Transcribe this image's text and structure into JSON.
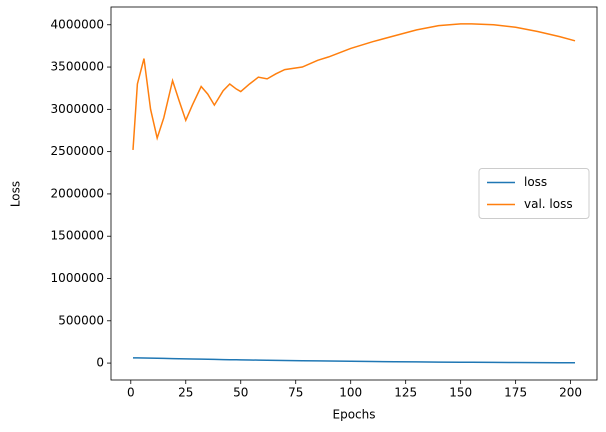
{
  "chart_data": {
    "type": "line",
    "x_label": "Epochs",
    "y_label": "Loss",
    "x": [
      1,
      3,
      6,
      9,
      12,
      15,
      19,
      22,
      25,
      28,
      32,
      35,
      38,
      42,
      45,
      48,
      50,
      54,
      58,
      62,
      66,
      70,
      78,
      85,
      90,
      100,
      110,
      120,
      130,
      140,
      150,
      155,
      165,
      175,
      185,
      195,
      202
    ],
    "series": [
      {
        "name": "loss",
        "color": "#1f77b4",
        "values": [
          62000,
          61000,
          59500,
          58000,
          56500,
          55000,
          53000,
          51500,
          50000,
          48500,
          46500,
          45000,
          43500,
          41500,
          40000,
          38800,
          38000,
          36500,
          35000,
          33500,
          32000,
          30500,
          28000,
          26000,
          24500,
          21500,
          18800,
          16300,
          14000,
          12000,
          10200,
          9400,
          8000,
          6700,
          5500,
          4400,
          3700
        ]
      },
      {
        "name": "val. loss",
        "color": "#ff7f0e",
        "values": [
          2520000,
          3300000,
          3600000,
          3000000,
          2660000,
          2900000,
          3340000,
          3100000,
          2870000,
          3050000,
          3270000,
          3180000,
          3050000,
          3220000,
          3300000,
          3240000,
          3210000,
          3300000,
          3380000,
          3360000,
          3420000,
          3470000,
          3500000,
          3580000,
          3620000,
          3720000,
          3800000,
          3870000,
          3940000,
          3990000,
          4010000,
          4010000,
          4000000,
          3970000,
          3920000,
          3860000,
          3810000
        ]
      }
    ],
    "xlim": [
      -9,
      212
    ],
    "ylim": [
      -200000,
      4210000
    ],
    "xticks": [
      0,
      25,
      50,
      75,
      100,
      125,
      150,
      175,
      200
    ],
    "yticks": [
      0,
      500000,
      1000000,
      1500000,
      2000000,
      2500000,
      3000000,
      3500000,
      4000000
    ],
    "legend": "center right"
  }
}
